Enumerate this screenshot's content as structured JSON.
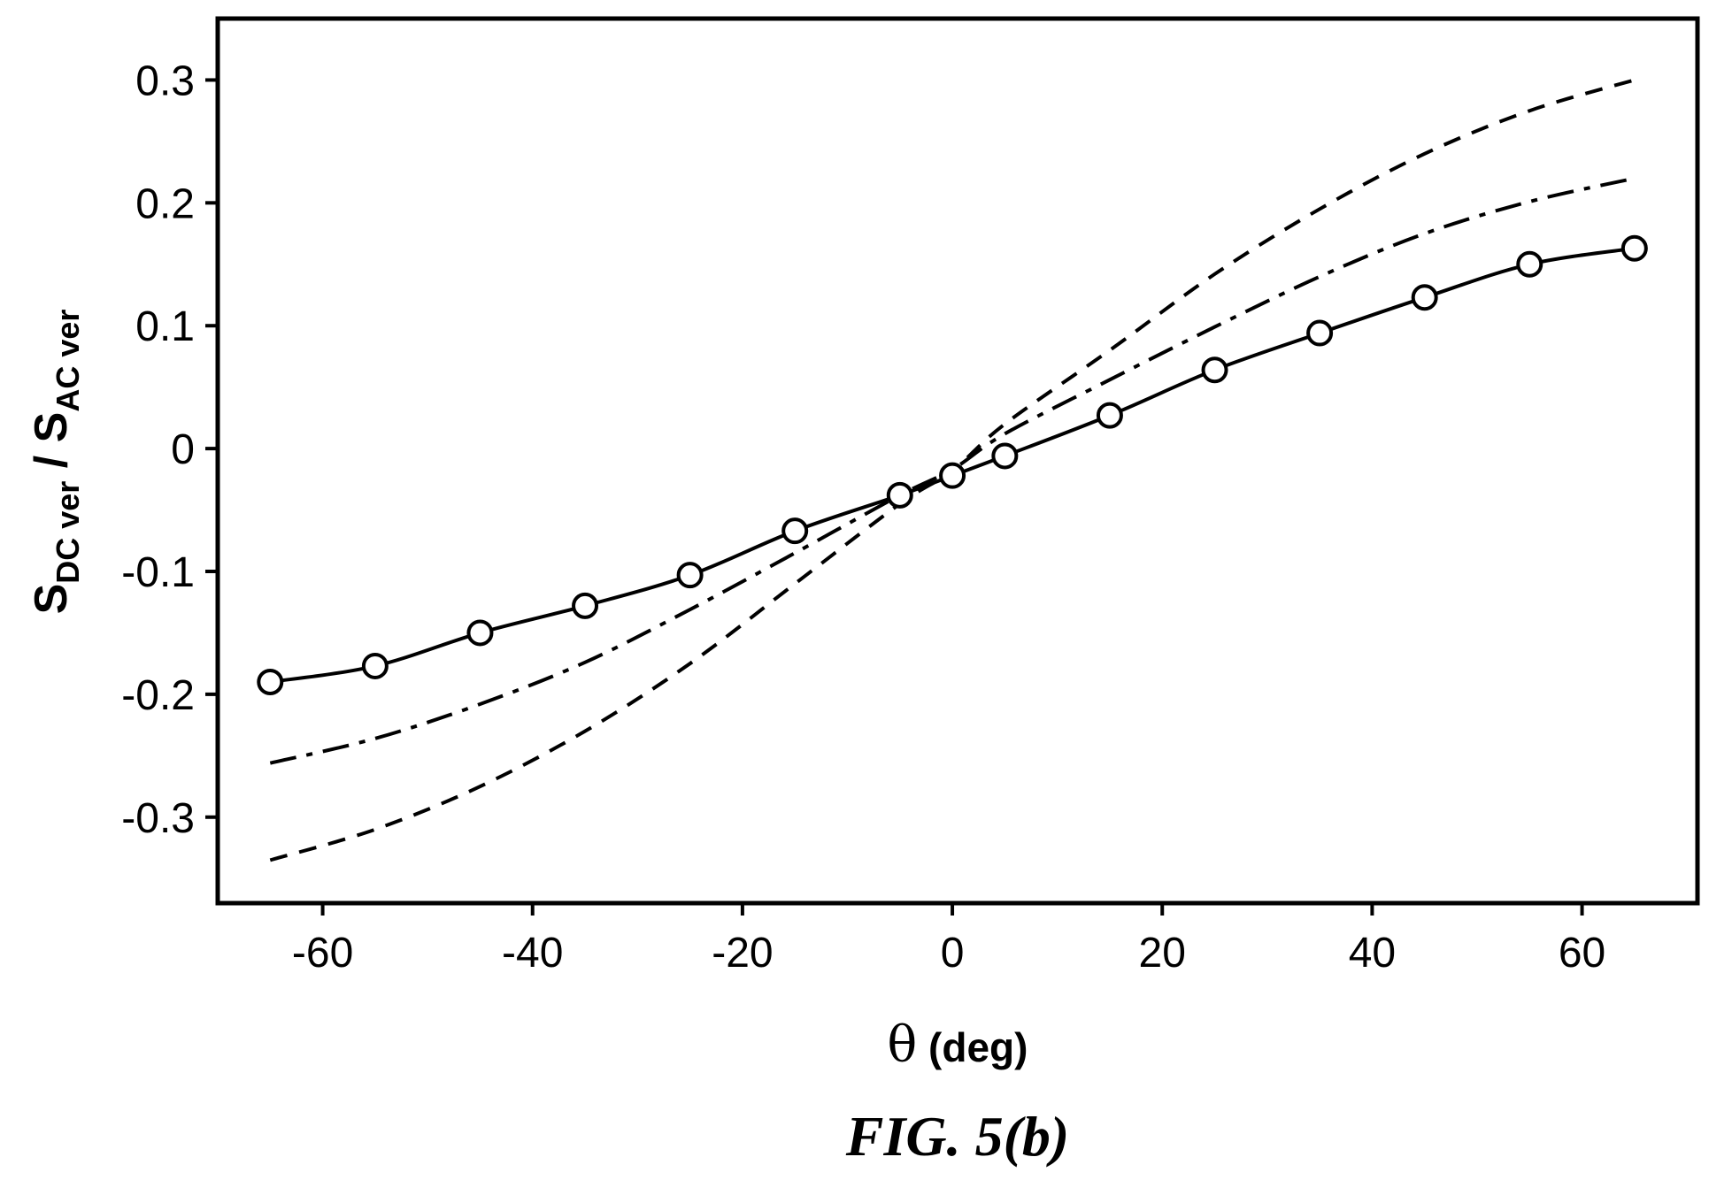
{
  "chart_data": {
    "type": "line",
    "caption": "FIG. 5(b)",
    "ylabel": {
      "main1": "S",
      "sub1": "DC ver",
      "sep": " / ",
      "main2": "S",
      "sub2": "AC ver"
    },
    "xlabel": {
      "symbol": "θ",
      "unit": " (deg)"
    },
    "xlim": [
      -70,
      71
    ],
    "ylim": [
      -0.37,
      0.35
    ],
    "x_ticks": [
      -60,
      -40,
      -20,
      0,
      20,
      40,
      60
    ],
    "x_tick_labels": [
      "-60",
      "-40",
      "-20",
      "0",
      "20",
      "40",
      "60"
    ],
    "y_ticks": [
      0.3,
      0.2,
      0.1,
      0,
      -0.1,
      -0.2,
      -0.3
    ],
    "y_tick_labels": [
      "0.3",
      "0.2",
      "0.1",
      "0",
      "-0.1",
      "-0.2",
      "-0.3"
    ],
    "grid": false,
    "legend": "none",
    "series": [
      {
        "style": "solid-with-markers",
        "marker": "open-circle",
        "color": "#000000",
        "x": [
          -65,
          -55,
          -45,
          -35,
          -25,
          -15,
          -5,
          0,
          5,
          15,
          25,
          35,
          45,
          55,
          65
        ],
        "y": [
          -0.19,
          -0.177,
          -0.15,
          -0.128,
          -0.103,
          -0.067,
          -0.038,
          -0.022,
          -0.006,
          0.027,
          0.064,
          0.094,
          0.123,
          0.15,
          0.163
        ]
      },
      {
        "style": "dash-dot",
        "color": "#000000",
        "x": [
          -65,
          -55,
          -45,
          -35,
          -25,
          -15,
          -5,
          0,
          5,
          15,
          25,
          35,
          45,
          55,
          65
        ],
        "y": [
          -0.256,
          -0.236,
          -0.208,
          -0.174,
          -0.131,
          -0.085,
          -0.038,
          -0.017,
          0.012,
          0.056,
          0.099,
          0.14,
          0.175,
          0.201,
          0.22
        ]
      },
      {
        "style": "dashed",
        "color": "#000000",
        "x": [
          -65,
          -55,
          -45,
          -35,
          -25,
          -15,
          -5,
          0,
          5,
          15,
          25,
          35,
          45,
          55,
          65
        ],
        "y": [
          -0.335,
          -0.31,
          -0.275,
          -0.23,
          -0.175,
          -0.11,
          -0.045,
          -0.018,
          0.02,
          0.08,
          0.142,
          0.195,
          0.24,
          0.275,
          0.3
        ]
      }
    ]
  }
}
